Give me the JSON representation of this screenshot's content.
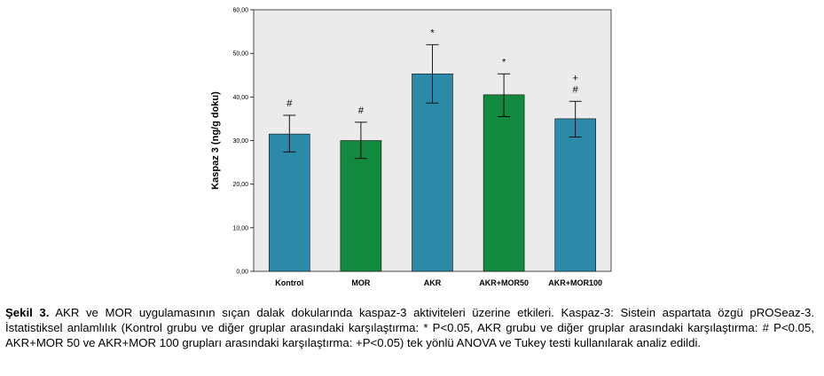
{
  "chart_data": {
    "type": "bar",
    "categories": [
      "Kontrol",
      "MOR",
      "AKR",
      "AKR+MOR50",
      "AKR+MOR100"
    ],
    "values": [
      31.5,
      30.0,
      45.3,
      40.5,
      35.0
    ],
    "error_high": [
      35.8,
      34.2,
      52.0,
      45.3,
      39.0
    ],
    "error_low": [
      27.4,
      25.9,
      38.6,
      35.5,
      30.8
    ],
    "significance": [
      [
        "#"
      ],
      [
        "#"
      ],
      [
        "*"
      ],
      [
        "*"
      ],
      [
        "+",
        "#"
      ]
    ],
    "bar_colors": [
      "#2a8aa8",
      "#13893f",
      "#2a8aa8",
      "#13893f",
      "#2a8aa8"
    ],
    "ylabel": "Kaspaz 3 (ng/g doku)",
    "xlabel": "",
    "ylim": [
      0,
      60
    ],
    "yticks": [
      "0,00",
      "10,00",
      "20,00",
      "30,00",
      "40,00",
      "50,00",
      "60,00"
    ],
    "plot_background": "#ebebeb",
    "grid": false
  },
  "caption": {
    "label": "Şekil 3.",
    "text": " AKR ve MOR uygulamasının sıçan dalak dokularında kaspaz-3 aktiviteleri üzerine etkileri. Kaspaz-3: Sistein aspartata özgü pROSeaz-3. İstatistiksel anlamlılık (Kontrol grubu ve diğer gruplar arasındaki karşılaştırma: * P<0.05, AKR grubu ve diğer gruplar arasındaki karşılaştırma: # P<0.05, AKR+MOR 50 ve AKR+MOR 100 grupları arasındaki karşılaştırma: +P<0.05) tek yönlü ANOVA ve Tukey testi kullanılarak analiz edildi."
  }
}
